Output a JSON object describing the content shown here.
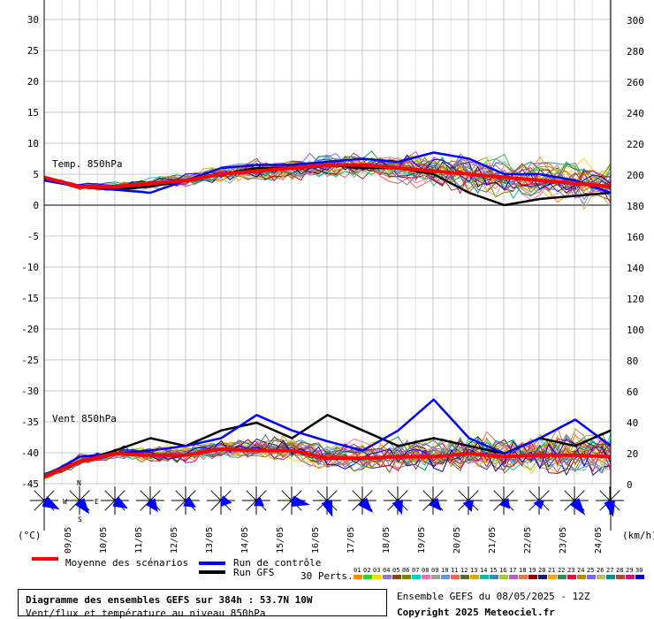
{
  "chart_data": {
    "type": "line",
    "title": "Diagramme des ensembles GEFS sur 384h : 53.7N 10W",
    "subtitle": "Vent/flux et température au niveau 850hPa",
    "left_axis": {
      "unit": "(°C)",
      "ylim": [
        -45,
        30
      ],
      "ticks": [
        30,
        25,
        20,
        15,
        10,
        5,
        0,
        -5,
        -10,
        -15,
        -20,
        -25,
        -30,
        -35,
        -40,
        -45
      ]
    },
    "right_axis": {
      "unit": "(km/h)",
      "ylim": [
        0,
        300
      ],
      "ticks": [
        300,
        280,
        260,
        240,
        220,
        200,
        180,
        160,
        140,
        120,
        100,
        80,
        60,
        40,
        20,
        0
      ]
    },
    "x_dates": [
      "09/05",
      "10/05",
      "11/05",
      "12/05",
      "13/05",
      "14/05",
      "15/05",
      "16/05",
      "17/05",
      "18/05",
      "19/05",
      "20/05",
      "21/05",
      "22/05",
      "23/05",
      "24/05"
    ],
    "x_range_hours": [
      0,
      384
    ],
    "annotations": {
      "temp": "Temp. 850hPa",
      "wind": "Vent 850hPa"
    },
    "compass": {
      "n": "N",
      "s": "S",
      "e": "E",
      "w": "W"
    },
    "series": [
      {
        "name": "Moyenne des scénarios",
        "color": "#ff0000",
        "axis": "left",
        "t": [
          0,
          24,
          48,
          72,
          96,
          120,
          144,
          168,
          192,
          216,
          240,
          264,
          288,
          312,
          336,
          360,
          384
        ],
        "v": [
          4.5,
          3,
          3,
          3.5,
          4,
          5,
          5.5,
          6,
          6.5,
          6.5,
          6,
          5.5,
          5,
          4.5,
          4,
          3.5,
          3
        ]
      },
      {
        "name": "Run de contrôle",
        "color": "#0000ff",
        "axis": "left",
        "t": [
          0,
          24,
          48,
          72,
          96,
          120,
          144,
          168,
          192,
          216,
          240,
          264,
          288,
          312,
          336,
          360,
          384
        ],
        "v": [
          4,
          3,
          2.5,
          2,
          4,
          6,
          6.5,
          6.5,
          7,
          7.5,
          7,
          8.5,
          7.5,
          5,
          5,
          4,
          2
        ]
      },
      {
        "name": "Run GFS",
        "color": "#000000",
        "axis": "left",
        "t": [
          0,
          24,
          48,
          72,
          96,
          120,
          144,
          168,
          192,
          216,
          240,
          264,
          288,
          312,
          336,
          360,
          384
        ],
        "v": [
          4,
          3,
          2.5,
          3,
          4,
          5,
          6,
          6,
          6.5,
          6,
          6,
          5,
          2,
          0,
          1,
          1.5,
          2
        ]
      },
      {
        "name": "Moyenne des scénarios (vent)",
        "color": "#ff0000",
        "axis": "right",
        "t": [
          0,
          24,
          48,
          72,
          96,
          120,
          144,
          168,
          192,
          216,
          240,
          264,
          288,
          312,
          336,
          360,
          384
        ],
        "v": [
          5,
          15,
          20,
          19,
          19,
          23,
          22,
          22,
          17,
          17,
          18,
          18,
          20,
          18,
          19,
          19,
          18
        ]
      },
      {
        "name": "Run de contrôle (vent)",
        "color": "#0000ff",
        "axis": "right",
        "t": [
          0,
          24,
          48,
          72,
          96,
          120,
          144,
          168,
          192,
          216,
          240,
          264,
          288,
          312,
          336,
          360,
          384
        ],
        "v": [
          5,
          18,
          20,
          22,
          25,
          30,
          45,
          35,
          28,
          22,
          35,
          55,
          30,
          20,
          30,
          42,
          25
        ]
      },
      {
        "name": "Run GFS (vent)",
        "color": "#000000",
        "axis": "right",
        "t": [
          0,
          24,
          48,
          72,
          96,
          120,
          144,
          168,
          192,
          216,
          240,
          264,
          288,
          312,
          336,
          360,
          384
        ],
        "v": [
          5,
          15,
          22,
          30,
          25,
          35,
          40,
          30,
          45,
          35,
          25,
          30,
          25,
          20,
          30,
          25,
          35
        ]
      }
    ],
    "legend": {
      "mean": "Moyenne des scénarios",
      "control": "Run de contrôle",
      "gfs": "Run GFS",
      "perts": "30 Perts.",
      "pert_numbers": [
        "01",
        "02",
        "03",
        "04",
        "05",
        "06",
        "07",
        "08",
        "09",
        "10",
        "11",
        "12",
        "13",
        "14",
        "15",
        "16",
        "17",
        "18",
        "19",
        "20",
        "21",
        "22",
        "23",
        "24",
        "25",
        "26",
        "27",
        "28",
        "29",
        "30"
      ],
      "pert_colors": [
        "#ff8c00",
        "#32cd32",
        "#ffd700",
        "#9370db",
        "#8b4513",
        "#808000",
        "#00ced1",
        "#ff69b4",
        "#a0a0a0",
        "#6495ed",
        "#ff6347",
        "#556b2f",
        "#daa520",
        "#20b2aa",
        "#4682b4",
        "#9acd32",
        "#ba55d3",
        "#cd853f",
        "#8b0000",
        "#191970",
        "#ffa500",
        "#2e8b57",
        "#dc143c",
        "#b8860b",
        "#7b68ee",
        "#bdb76b",
        "#008b8b",
        "#a0522d",
        "#c71585",
        "#0000cd"
      ]
    }
  },
  "footer": {
    "title": "Diagramme des ensembles GEFS sur 384h : 53.7N 10W",
    "subtitle": "Vent/flux et température au niveau 850hPa",
    "run_info": "Ensemble GEFS du 08/05/2025 - 12Z",
    "copyright": "Copyright 2025 Meteociel.fr"
  }
}
